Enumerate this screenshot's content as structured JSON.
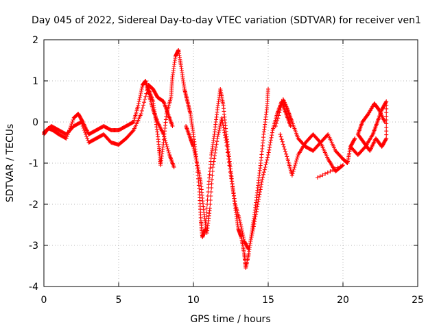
{
  "chart_data": {
    "type": "scatter",
    "title": "Day 045 of 2022, Sidereal Day-to-day VTEC variation (SDTVAR) for receiver ven1",
    "xlabel": "GPS time / hours",
    "ylabel": "SDTVAR / TECUs",
    "xlim": [
      0,
      25
    ],
    "ylim": [
      -4,
      2
    ],
    "xticks": [
      0,
      5,
      10,
      15,
      20,
      25
    ],
    "yticks": [
      -4,
      -3,
      -2,
      -1,
      0,
      1,
      2
    ],
    "xtick_labels": [
      "0",
      "5",
      "10",
      "15",
      "20",
      "25"
    ],
    "ytick_labels": [
      "-4",
      "-3",
      "-2",
      "-1",
      "0",
      "1",
      "2"
    ],
    "grid": true,
    "marker": "+",
    "color": "#ff0000",
    "series": [
      {
        "name": "track-1",
        "points": [
          [
            0.0,
            -0.3
          ],
          [
            0.3,
            -0.15
          ],
          [
            0.6,
            -0.2
          ],
          [
            1.0,
            -0.3
          ],
          [
            1.5,
            -0.4
          ],
          [
            2.0,
            0.1
          ],
          [
            2.3,
            0.2
          ],
          [
            2.6,
            0.0
          ],
          [
            3.0,
            -0.3
          ],
          [
            3.5,
            -0.2
          ],
          [
            4.0,
            -0.1
          ],
          [
            4.5,
            -0.2
          ],
          [
            5.0,
            -0.2
          ],
          [
            5.5,
            -0.1
          ],
          [
            6.0,
            0.0
          ],
          [
            6.3,
            0.4
          ],
          [
            6.6,
            0.9
          ],
          [
            6.8,
            1.0
          ],
          [
            7.0,
            0.7
          ],
          [
            7.3,
            0.3
          ],
          [
            7.6,
            0.0
          ],
          [
            8.0,
            -0.3
          ],
          [
            8.4,
            -0.8
          ],
          [
            8.7,
            -1.1
          ]
        ]
      },
      {
        "name": "track-2",
        "points": [
          [
            0.0,
            -0.25
          ],
          [
            0.5,
            -0.1
          ],
          [
            1.0,
            -0.2
          ],
          [
            1.5,
            -0.3
          ],
          [
            2.0,
            -0.1
          ],
          [
            2.5,
            0.0
          ],
          [
            3.0,
            -0.5
          ],
          [
            3.5,
            -0.4
          ],
          [
            4.0,
            -0.3
          ],
          [
            4.5,
            -0.5
          ],
          [
            5.0,
            -0.55
          ],
          [
            5.5,
            -0.4
          ],
          [
            6.0,
            -0.2
          ],
          [
            6.5,
            0.2
          ],
          [
            7.0,
            0.9
          ],
          [
            7.3,
            0.8
          ],
          [
            7.6,
            0.6
          ],
          [
            8.0,
            0.5
          ],
          [
            8.3,
            0.2
          ],
          [
            8.6,
            -0.1
          ]
        ]
      },
      {
        "name": "track-3",
        "points": [
          [
            7.0,
            0.8
          ],
          [
            7.3,
            0.5
          ],
          [
            7.5,
            0.0
          ],
          [
            7.7,
            -0.6
          ],
          [
            7.8,
            -1.05
          ],
          [
            8.0,
            -0.5
          ],
          [
            8.2,
            0.2
          ],
          [
            8.5,
            0.6
          ],
          [
            8.6,
            1.1
          ],
          [
            8.8,
            1.6
          ],
          [
            9.0,
            1.75
          ],
          [
            9.2,
            1.3
          ],
          [
            9.4,
            0.8
          ],
          [
            9.6,
            0.5
          ],
          [
            9.8,
            0.2
          ],
          [
            10.0,
            -0.3
          ],
          [
            10.2,
            -0.9
          ],
          [
            10.4,
            -1.7
          ],
          [
            10.5,
            -2.4
          ],
          [
            10.6,
            -2.8
          ],
          [
            10.8,
            -2.6
          ],
          [
            11.0,
            -1.6
          ],
          [
            11.2,
            -0.8
          ],
          [
            11.4,
            -0.3
          ],
          [
            11.6,
            0.3
          ],
          [
            11.8,
            0.8
          ],
          [
            12.0,
            0.4
          ],
          [
            12.2,
            -0.3
          ],
          [
            12.4,
            -0.9
          ],
          [
            12.6,
            -1.5
          ],
          [
            12.8,
            -2.1
          ],
          [
            13.0,
            -2.6
          ],
          [
            13.2,
            -2.8
          ],
          [
            13.4,
            -3.2
          ],
          [
            13.5,
            -3.55
          ],
          [
            13.7,
            -3.2
          ],
          [
            13.9,
            -2.7
          ],
          [
            14.1,
            -2.2
          ],
          [
            14.3,
            -1.6
          ],
          [
            14.5,
            -1.0
          ],
          [
            14.7,
            -0.3
          ],
          [
            14.9,
            0.3
          ],
          [
            15.0,
            0.8
          ]
        ]
      },
      {
        "name": "track-4",
        "points": [
          [
            9.5,
            -0.1
          ],
          [
            9.8,
            -0.4
          ],
          [
            10.0,
            -0.6
          ],
          [
            10.3,
            -1.1
          ],
          [
            10.5,
            -1.5
          ],
          [
            10.7,
            -2.2
          ],
          [
            10.9,
            -2.7
          ],
          [
            11.1,
            -2.1
          ],
          [
            11.3,
            -1.1
          ],
          [
            11.6,
            -0.4
          ],
          [
            11.9,
            0.1
          ],
          [
            12.2,
            -0.5
          ],
          [
            12.5,
            -1.3
          ],
          [
            12.8,
            -2.0
          ],
          [
            13.1,
            -2.4
          ],
          [
            13.4,
            -2.9
          ],
          [
            13.7,
            -3.1
          ],
          [
            14.0,
            -2.6
          ],
          [
            14.3,
            -2.0
          ],
          [
            14.6,
            -1.4
          ],
          [
            15.0,
            -0.8
          ],
          [
            15.3,
            -0.2
          ],
          [
            15.6,
            0.2
          ],
          [
            15.9,
            0.5
          ],
          [
            16.2,
            0.2
          ],
          [
            16.5,
            -0.1
          ]
        ]
      },
      {
        "name": "track-5",
        "points": [
          [
            15.5,
            -0.1
          ],
          [
            16.0,
            0.55
          ],
          [
            16.3,
            0.3
          ],
          [
            16.6,
            0.0
          ],
          [
            17.0,
            -0.4
          ],
          [
            17.5,
            -0.6
          ],
          [
            18.0,
            -0.7
          ],
          [
            18.5,
            -0.5
          ],
          [
            19.0,
            -0.3
          ],
          [
            19.5,
            -0.7
          ],
          [
            20.0,
            -0.9
          ],
          [
            20.3,
            -1.0
          ],
          [
            20.5,
            -0.6
          ],
          [
            20.8,
            -0.4
          ]
        ]
      },
      {
        "name": "track-6",
        "points": [
          [
            15.8,
            -0.3
          ],
          [
            16.3,
            -0.9
          ],
          [
            16.6,
            -1.3
          ],
          [
            17.0,
            -0.8
          ],
          [
            17.5,
            -0.5
          ],
          [
            18.0,
            -0.3
          ],
          [
            18.5,
            -0.5
          ],
          [
            19.0,
            -0.9
          ],
          [
            19.5,
            -1.2
          ],
          [
            20.0,
            -1.05
          ],
          [
            18.3,
            -1.35
          ]
        ]
      },
      {
        "name": "track-7",
        "points": [
          [
            20.5,
            -0.6
          ],
          [
            21.0,
            -0.8
          ],
          [
            21.5,
            -0.6
          ],
          [
            22.0,
            -0.3
          ],
          [
            22.3,
            0.0
          ],
          [
            22.6,
            0.3
          ],
          [
            22.9,
            0.5
          ],
          [
            22.9,
            -0.4
          ],
          [
            22.6,
            -0.6
          ],
          [
            22.2,
            -0.4
          ],
          [
            21.8,
            -0.7
          ],
          [
            21.4,
            -0.5
          ],
          [
            21.0,
            -0.3
          ],
          [
            21.3,
            0.0
          ],
          [
            21.7,
            0.2
          ],
          [
            22.1,
            0.45
          ],
          [
            22.4,
            0.3
          ],
          [
            22.8,
            0.0
          ]
        ]
      }
    ]
  }
}
